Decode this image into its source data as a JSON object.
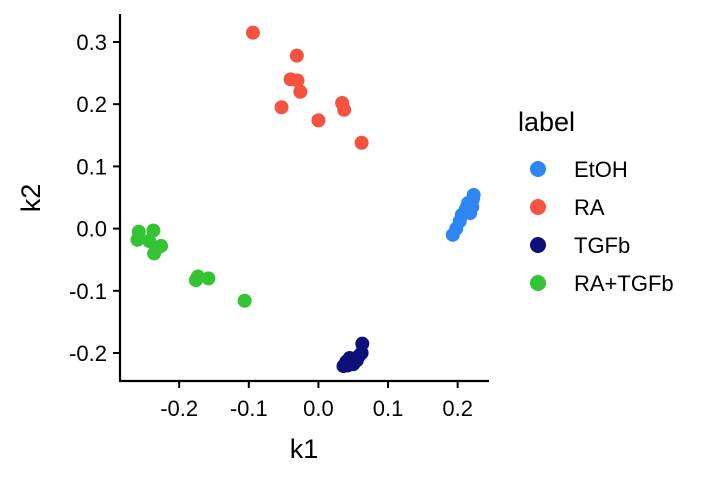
{
  "chart_data": {
    "type": "scatter",
    "xlabel": "k1",
    "ylabel": "k2",
    "xlim": [
      -0.285,
      0.245
    ],
    "ylim": [
      -0.245,
      0.345
    ],
    "x_ticks": [
      -0.2,
      -0.1,
      0.0,
      0.1,
      0.2
    ],
    "x_tick_labels": [
      "-0.2",
      "-0.1",
      "0.0",
      "0.1",
      "0.2"
    ],
    "y_ticks": [
      -0.2,
      -0.1,
      0.0,
      0.1,
      0.2,
      0.3
    ],
    "y_tick_labels": [
      "-0.2",
      "-0.1",
      "0.0",
      "0.1",
      "0.2",
      "0.3"
    ],
    "grid": false,
    "legend": {
      "title": "label",
      "placement": "right"
    },
    "series": [
      {
        "name": "EtOH",
        "color": "#2E86F5",
        "points": [
          [
            0.193,
            -0.01
          ],
          [
            0.198,
            0.0
          ],
          [
            0.203,
            0.012
          ],
          [
            0.206,
            0.022
          ],
          [
            0.212,
            0.032
          ],
          [
            0.215,
            0.041
          ],
          [
            0.218,
            0.025
          ],
          [
            0.221,
            0.035
          ],
          [
            0.222,
            0.048
          ],
          [
            0.223,
            0.054
          ]
        ]
      },
      {
        "name": "RA",
        "color": "#F5533F",
        "points": [
          [
            -0.094,
            0.315
          ],
          [
            -0.031,
            0.278
          ],
          [
            -0.04,
            0.24
          ],
          [
            -0.03,
            0.238
          ],
          [
            -0.026,
            0.22
          ],
          [
            -0.053,
            0.195
          ],
          [
            0.0,
            0.174
          ],
          [
            0.034,
            0.202
          ],
          [
            0.037,
            0.191
          ],
          [
            0.062,
            0.138
          ]
        ]
      },
      {
        "name": "TGFb",
        "color": "#0A0F7A",
        "points": [
          [
            0.036,
            -0.221
          ],
          [
            0.04,
            -0.214
          ],
          [
            0.045,
            -0.208
          ],
          [
            0.05,
            -0.218
          ],
          [
            0.055,
            -0.212
          ],
          [
            0.058,
            -0.205
          ],
          [
            0.062,
            -0.2
          ],
          [
            0.063,
            -0.185
          ],
          [
            0.048,
            -0.215
          ],
          [
            0.042,
            -0.22
          ]
        ]
      },
      {
        "name": "RA+TGFb",
        "color": "#33C434",
        "points": [
          [
            -0.26,
            -0.018
          ],
          [
            -0.258,
            -0.005
          ],
          [
            -0.243,
            -0.02
          ],
          [
            -0.237,
            -0.003
          ],
          [
            -0.236,
            -0.04
          ],
          [
            -0.23,
            -0.03
          ],
          [
            -0.226,
            -0.028
          ],
          [
            -0.176,
            -0.083
          ],
          [
            -0.173,
            -0.077
          ],
          [
            -0.158,
            -0.08
          ],
          [
            -0.106,
            -0.116
          ]
        ]
      }
    ]
  }
}
